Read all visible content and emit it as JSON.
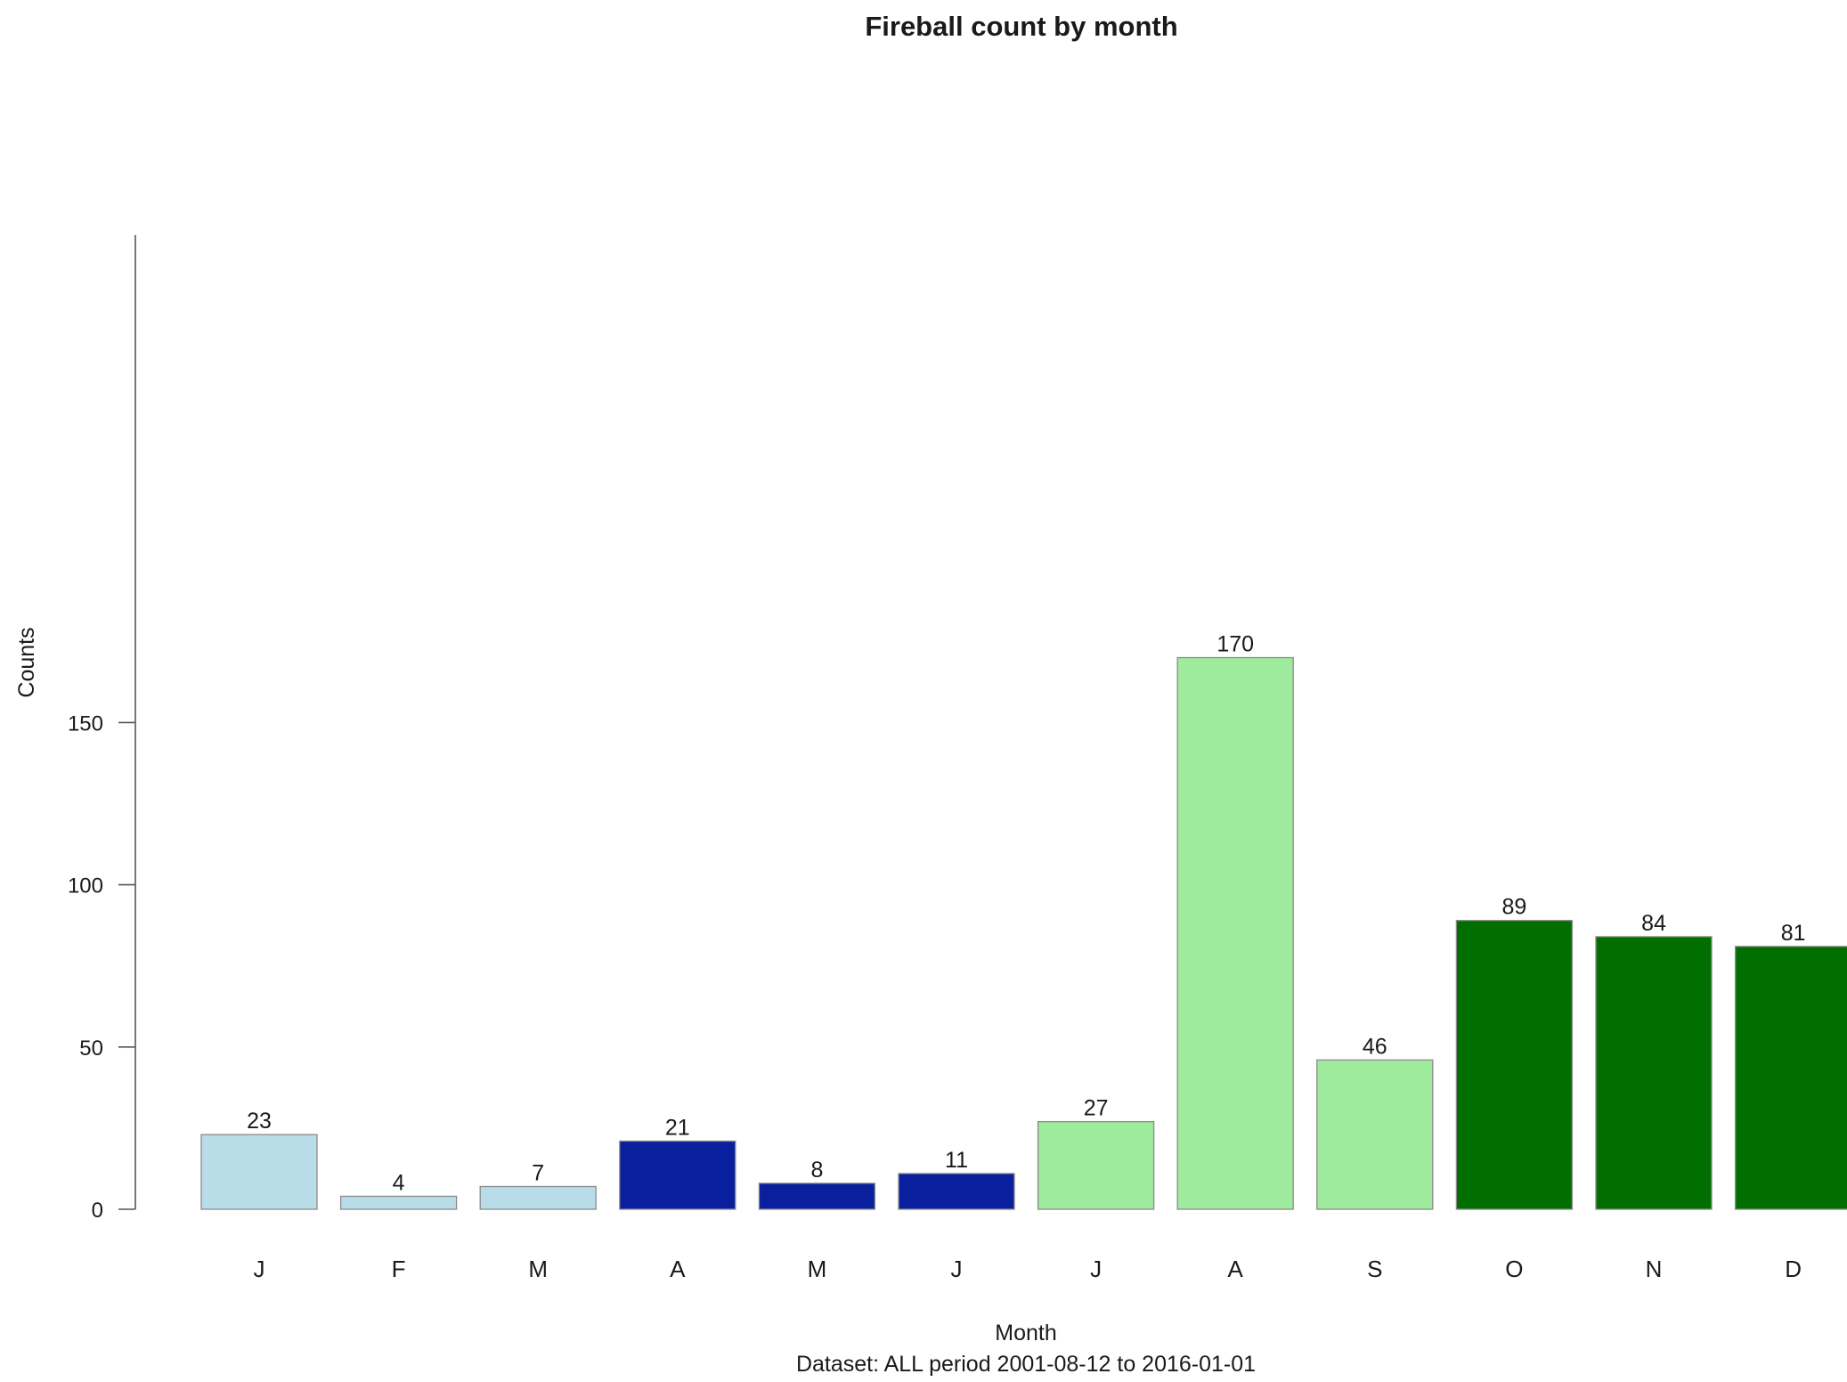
{
  "chart_data": {
    "type": "bar",
    "title": "Fireball count by month",
    "xlabel": "Month",
    "ylabel": "Counts",
    "subtitle": "Dataset: ALL period 2001-08-12 to 2016-01-01",
    "categories": [
      "J",
      "F",
      "M",
      "A",
      "M",
      "J",
      "J",
      "A",
      "S",
      "O",
      "N",
      "D"
    ],
    "values": [
      23,
      4,
      7,
      21,
      8,
      11,
      27,
      170,
      46,
      89,
      84,
      81
    ],
    "bar_colors": [
      "#b8dde9",
      "#b8dde9",
      "#b8dde9",
      "#0a1f9e",
      "#0a1f9e",
      "#0a1f9e",
      "#9eeb9e",
      "#9eeb9e",
      "#9eeb9e",
      "#006f00",
      "#006f00",
      "#006f00"
    ],
    "yticks": [
      0,
      50,
      100,
      150
    ],
    "ylim": [
      0,
      170
    ],
    "grid": false,
    "legend": "none"
  }
}
